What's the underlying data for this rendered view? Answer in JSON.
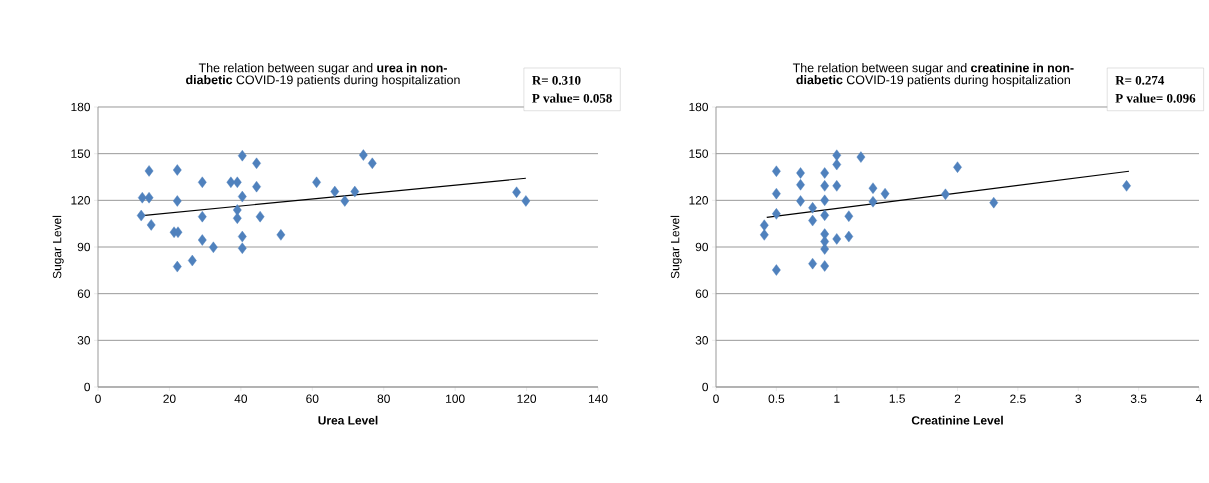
{
  "chart_data": [
    {
      "type": "scatter",
      "title": "The relation between sugar and **urea in non-diabetic** COVID-19 patients during hospitalization",
      "xlabel": "Urea Level",
      "ylabel": "Sugar Level",
      "annotations": [
        "R= 0.310",
        "P value= 0.058"
      ],
      "xlim": [
        0,
        140
      ],
      "ylim": [
        0,
        180
      ],
      "xticks": [
        0,
        20,
        40,
        60,
        80,
        100,
        120,
        140
      ],
      "yticks": [
        0,
        30,
        60,
        90,
        120,
        150,
        180
      ],
      "grid": "y",
      "marker": "diamond",
      "series": [
        {
          "color": "#4f81bd",
          "x": [
            12.4,
            14.3,
            14.3,
            12.1,
            14.9,
            22.2,
            22.2,
            21.3,
            22.4,
            22.2,
            26.4,
            29.2,
            29.2,
            29.2,
            32.3,
            37.2,
            39.0,
            40.4,
            40.4,
            39.0,
            39.0,
            40.4,
            40.4,
            44.4,
            44.4,
            45.4,
            51.2,
            61.2,
            66.3,
            69.1,
            71.9,
            74.3,
            76.8,
            117.2,
            119.8
          ],
          "values": [
            121.7,
            121.7,
            138.9,
            110.2,
            104.2,
            139.5,
            119.6,
            99.5,
            99.5,
            77.4,
            81.3,
            131.6,
            109.5,
            94.5,
            89.8,
            131.6,
            131.6,
            148.7,
            122.4,
            113.8,
            108.5,
            96.7,
            89.2,
            143.8,
            128.8,
            109.5,
            97.8,
            131.6,
            125.6,
            119.6,
            125.6,
            149.1,
            143.8,
            125.2,
            119.6
          ]
        },
        {
          "type": "line",
          "marker": "none",
          "color": "#000000",
          "x": [
            12.4,
            119.8
          ],
          "values": [
            110.2,
            134.2
          ]
        }
      ]
    },
    {
      "type": "scatter",
      "title": "The relation between sugar and **creatinine in non-diabetic** COVID-19 patients during hospitalization",
      "xlabel": "Creatinine Level",
      "ylabel": "Sugar Level",
      "annotations": [
        "R= 0.274",
        "P value= 0.096"
      ],
      "xlim": [
        0,
        4
      ],
      "ylim": [
        0,
        180
      ],
      "xticks": [
        0,
        0.5,
        1,
        1.5,
        2,
        2.5,
        3,
        3.5,
        4
      ],
      "yticks": [
        0,
        30,
        60,
        90,
        120,
        150,
        180
      ],
      "grid": "y",
      "marker": "diamond",
      "series": [
        {
          "color": "#4f81bd",
          "x": [
            0.4,
            0.4,
            0.5,
            0.5,
            0.5,
            0.5,
            0.7,
            0.7,
            0.7,
            0.8,
            0.8,
            0.8,
            0.9,
            0.9,
            0.9,
            0.9,
            0.9,
            0.9,
            0.9,
            0.9,
            1,
            1,
            1,
            1,
            1.1,
            1.1,
            1.2,
            1.3,
            1.3,
            1.4,
            1.9,
            2,
            2.3,
            3.4
          ],
          "values": [
            104,
            97.8,
            138.7,
            124.3,
            111.3,
            75.2,
            137.6,
            130,
            119.6,
            115.2,
            107,
            79.3,
            137.6,
            129.3,
            120,
            110.4,
            98.3,
            93.5,
            88.7,
            77.8,
            149,
            143,
            129.3,
            95.2,
            109.8,
            96.7,
            147.8,
            127.8,
            119.1,
            124.3,
            123.9,
            141.3,
            118.5,
            129.3
          ]
        },
        {
          "type": "line",
          "marker": "none",
          "color": "#000000",
          "x": [
            0.42,
            3.42
          ],
          "values": [
            109.1,
            138.7
          ]
        }
      ]
    }
  ]
}
